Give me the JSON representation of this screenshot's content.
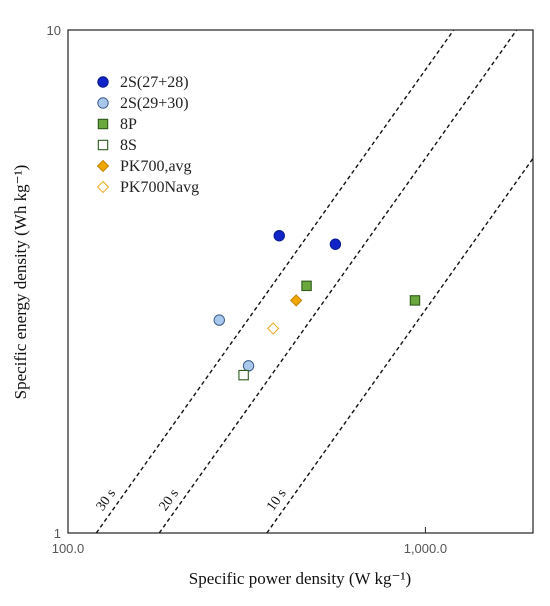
{
  "chart_data": {
    "type": "scatter",
    "xscale": "log",
    "yscale": "log",
    "xlim": [
      100,
      2000
    ],
    "ylim": [
      1,
      10
    ],
    "xticks": [
      100,
      1000
    ],
    "xtick_labels": [
      "100.0",
      "1,000.0"
    ],
    "yticks": [
      1,
      10
    ],
    "ytick_labels": [
      "1",
      "10"
    ],
    "xlabel": "Specific power density (W kg⁻¹)",
    "ylabel": "Specific energy density (Wh kg⁻¹)",
    "grid": false,
    "legend_position": "top-left",
    "series": [
      {
        "name": "2S(27+28)",
        "marker": "circle",
        "fill": "#1024c8",
        "stroke": "#0a1a8c",
        "points": [
          {
            "x": 390,
            "y": 3.9
          },
          {
            "x": 560,
            "y": 3.75
          }
        ]
      },
      {
        "name": "2S(29+30)",
        "marker": "circle",
        "fill": "#a9c8ee",
        "stroke": "#3a5a8a",
        "points": [
          {
            "x": 265,
            "y": 2.65
          },
          {
            "x": 320,
            "y": 2.15
          }
        ]
      },
      {
        "name": "8P",
        "marker": "square",
        "fill": "#6aa83e",
        "stroke": "#2e5a1c",
        "points": [
          {
            "x": 465,
            "y": 3.1
          },
          {
            "x": 935,
            "y": 2.9
          }
        ]
      },
      {
        "name": "8S",
        "marker": "square",
        "fill": "#ffffff",
        "stroke": "#2e5a1c",
        "points": [
          {
            "x": 310,
            "y": 2.06
          }
        ]
      },
      {
        "name": "PK700,avg",
        "marker": "diamond",
        "fill": "#f0a800",
        "stroke": "#c08000",
        "points": [
          {
            "x": 435,
            "y": 2.9
          }
        ]
      },
      {
        "name": "PK700Navg",
        "marker": "diamond",
        "fill": "#ffffff",
        "stroke": "#e8a820",
        "points": [
          {
            "x": 375,
            "y": 2.55
          }
        ]
      }
    ],
    "reference_lines": [
      {
        "label": "30 s",
        "seconds": 30
      },
      {
        "label": "20 s",
        "seconds": 20
      },
      {
        "label": "10 s",
        "seconds": 10
      }
    ]
  }
}
